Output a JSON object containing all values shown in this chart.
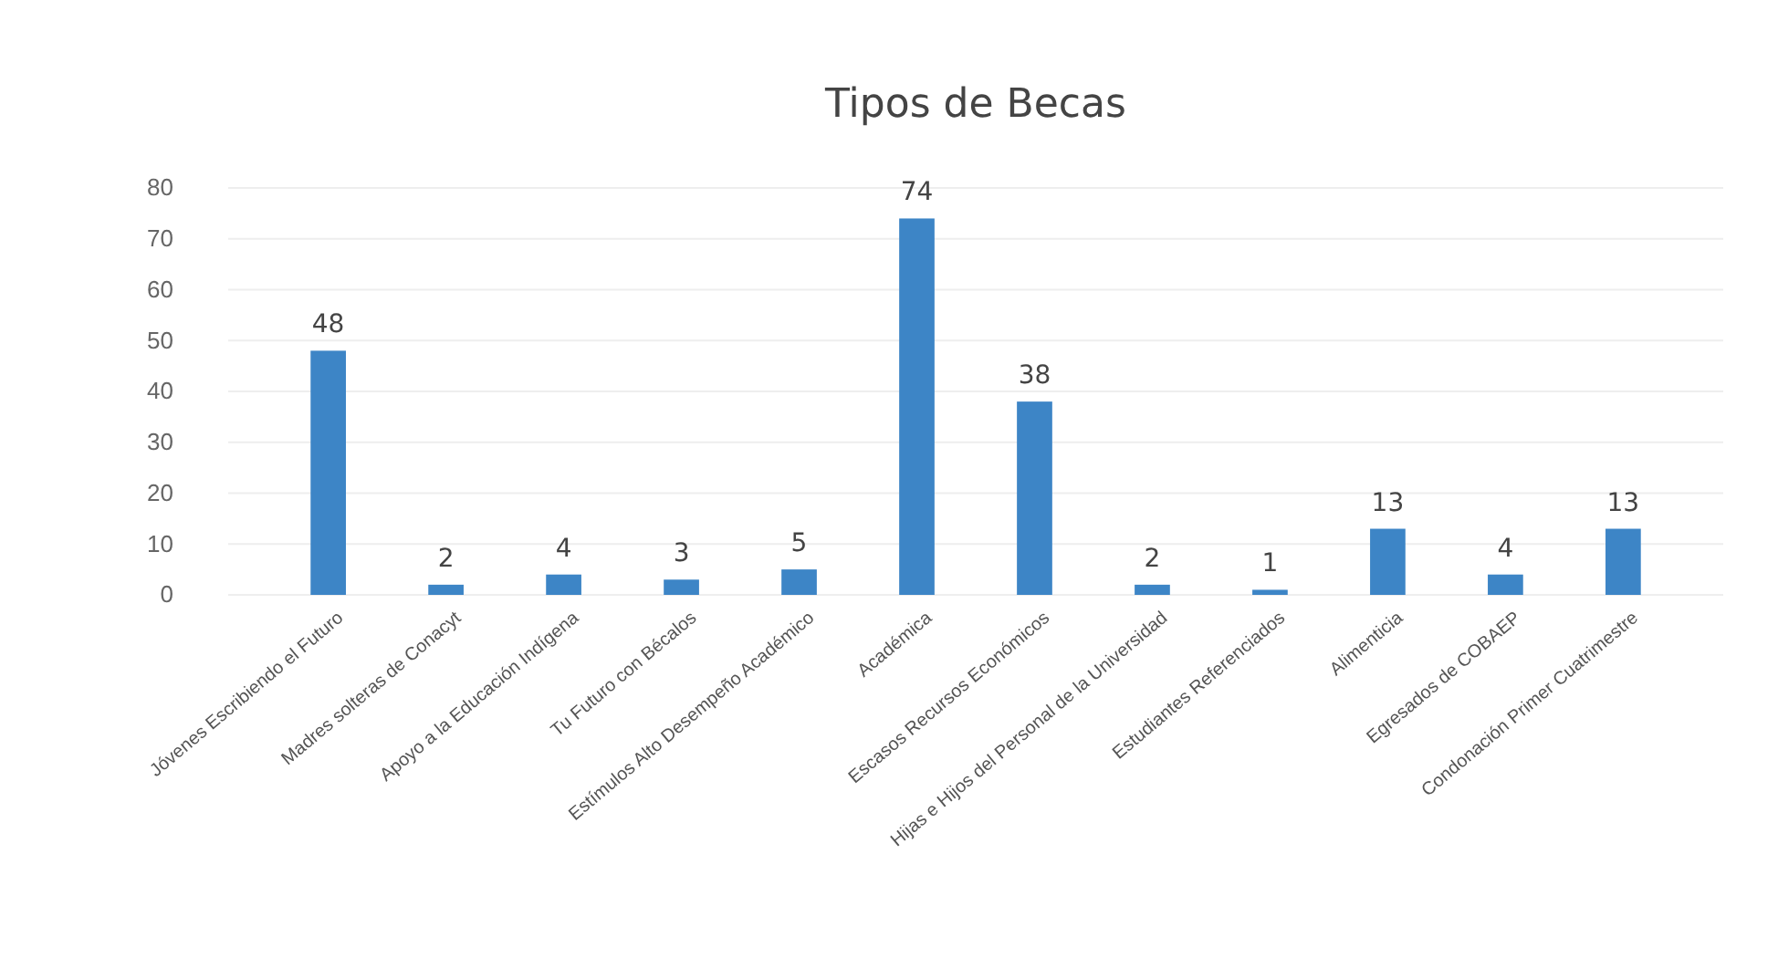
{
  "chart_data": {
    "type": "bar",
    "title": "Tipos de Becas",
    "categories": [
      "Jóvenes Escribiendo el Futuro",
      "Madres solteras de Conacyt",
      "Apoyo a la Educación Indígena",
      "Tu Futuro con Bécalos",
      "Estímulos Alto Desempeño Académico",
      "Académica",
      "Escasos Recursos Económicos",
      "Hijas e Hijos del Personal de la Universidad",
      "Estudiantes Referenciados",
      "Alimenticia",
      "Egresados de COBAEP",
      "Condonación Primer Cuatrimestre"
    ],
    "values": [
      48,
      2,
      4,
      3,
      5,
      74,
      38,
      2,
      1,
      13,
      4,
      13
    ],
    "color": "#3d85c6",
    "ylim": [
      0,
      80
    ],
    "yticks": [
      0,
      10,
      20,
      30,
      40,
      50,
      60,
      70,
      80
    ],
    "grid": "y",
    "data_labels": true
  }
}
